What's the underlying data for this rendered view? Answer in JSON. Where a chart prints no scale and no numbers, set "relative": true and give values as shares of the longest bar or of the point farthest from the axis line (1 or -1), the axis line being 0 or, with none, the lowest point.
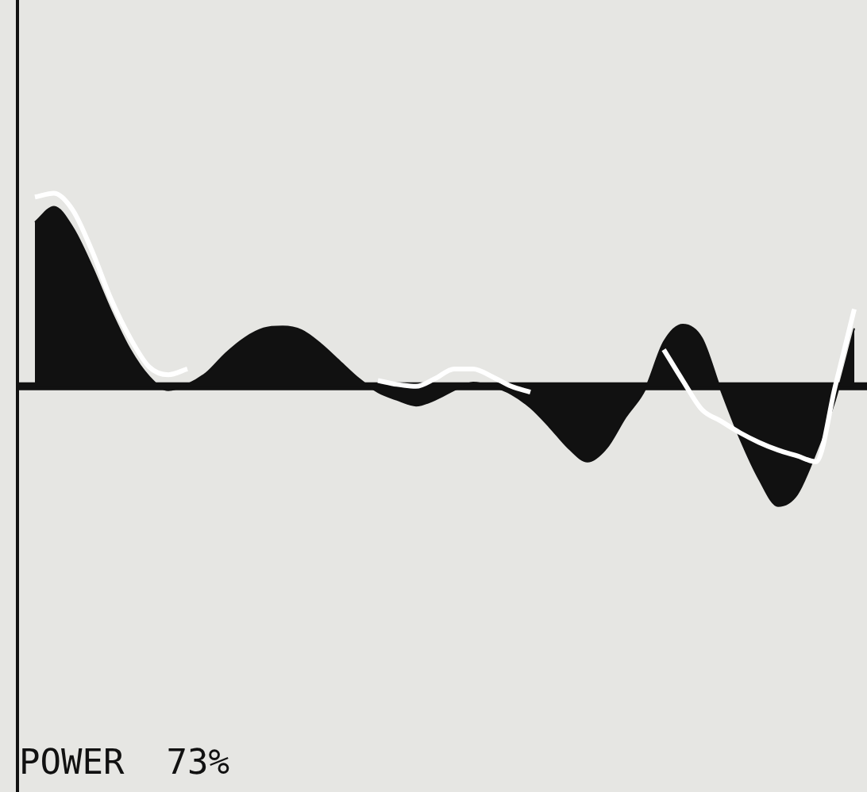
{
  "chart_data": {
    "type": "area",
    "relative": true,
    "legend": false,
    "marker": "none",
    "line_style": "solid",
    "annotations": [
      "POWER  73%"
    ],
    "categories": [
      null,
      null,
      null,
      null,
      null,
      null,
      null,
      null,
      null,
      null,
      null,
      null,
      null,
      null,
      null,
      null,
      null,
      null,
      null,
      null,
      null,
      null,
      null,
      null,
      null,
      null,
      null,
      null,
      null,
      null,
      null,
      null,
      null,
      null,
      null,
      null,
      null,
      null,
      null,
      null,
      null,
      null,
      null,
      null
    ],
    "series": [
      {
        "color": "#111111",
        "values": [
          0.85,
          0.93,
          0.82,
          0.62,
          0.39,
          0.19,
          0.05,
          -0.02,
          0.01,
          0.07,
          0.17,
          0.25,
          0.3,
          0.31,
          0.29,
          0.22,
          0.13,
          0.04,
          -0.03,
          -0.07,
          -0.1,
          -0.07,
          -0.02,
          0.02,
          0,
          -0.04,
          -0.11,
          -0.21,
          -0.32,
          -0.39,
          -0.32,
          -0.16,
          -0.02,
          0.23,
          0.32,
          0.25,
          -0.02,
          -0.27,
          -0.48,
          -0.62,
          -0.56,
          -0.34,
          -0.07,
          0.3
        ]
      },
      {
        "type": "line",
        "color": "#ffffff",
        "values": [
          0.98,
          1,
          0.91,
          0.7,
          0.45,
          0.25,
          0.1,
          0.06,
          0.09,
          null,
          null,
          null,
          null,
          null,
          null,
          null,
          null,
          null,
          0.03,
          0.01,
          0,
          0.04,
          0.09,
          0.09,
          0.05,
          0,
          -0.03,
          null,
          null,
          null,
          null,
          null,
          null,
          0.19,
          0.03,
          -0.12,
          -0.18,
          -0.24,
          -0.29,
          -0.33,
          -0.36,
          -0.39,
          0,
          0.4
        ]
      }
    ]
  }
}
